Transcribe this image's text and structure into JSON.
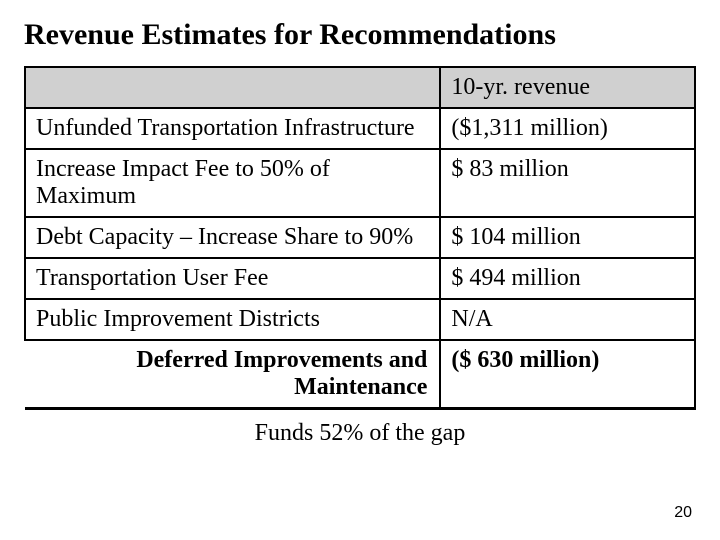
{
  "title": "Revenue Estimates for Recommendations",
  "table": {
    "header_revenue": "10-yr. revenue",
    "rows": [
      {
        "label": "Unfunded Transportation Infrastructure",
        "value": "($1,311 million)"
      },
      {
        "label": "Increase Impact Fee to 50% of Maximum",
        "value": "$      83 million"
      },
      {
        "label": "Debt Capacity – Increase Share to 90%",
        "value": "$    104 million"
      },
      {
        "label": "Transportation User Fee",
        "value": "$    494 million"
      },
      {
        "label": "Public Improvement Districts",
        "value": "N/A"
      }
    ],
    "summary_label": "Deferred Improvements and Maintenance",
    "summary_value": "($   630 million)"
  },
  "footer": "Funds 52% of the gap",
  "page_number": "20",
  "colors": {
    "header_bg": "#d0d0d0",
    "border": "#000000",
    "text": "#000000",
    "background": "#ffffff"
  },
  "typography": {
    "title_fontsize": 30,
    "body_fontsize": 24,
    "pagenum_fontsize": 16,
    "font_family": "Times New Roman"
  }
}
